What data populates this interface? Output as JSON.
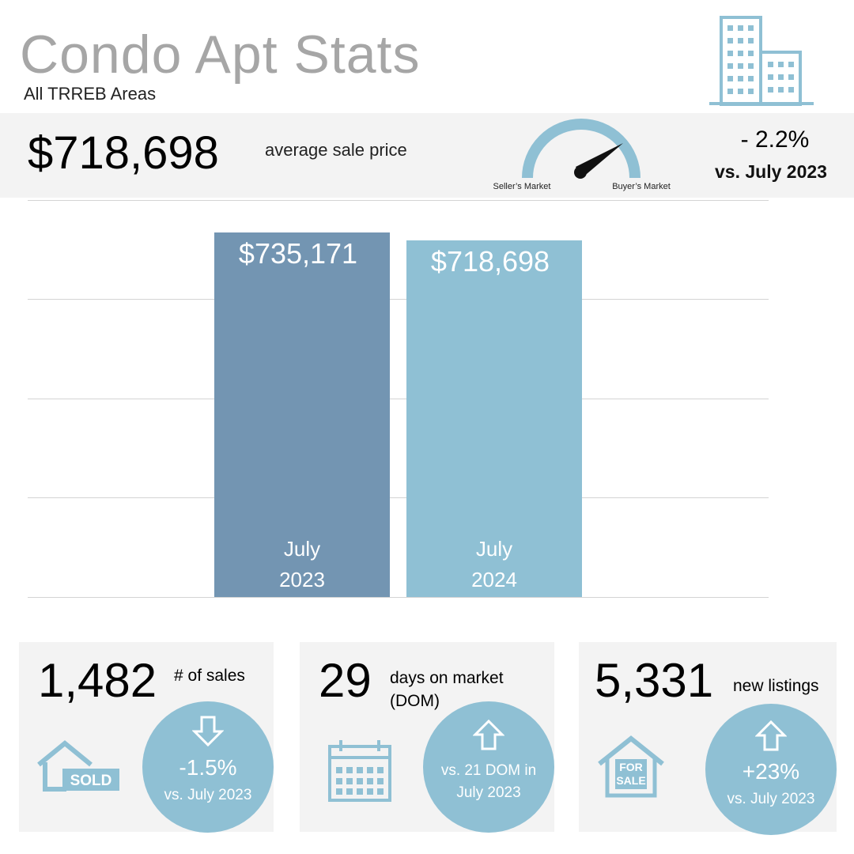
{
  "header": {
    "title": "Condo Apt Stats",
    "subtitle": "All TRREB Areas"
  },
  "summary": {
    "value": "$718,698",
    "label": "average sale price",
    "gauge_left": "Seller’s Market",
    "gauge_right": "Buyer’s Market",
    "change": "- 2.2%",
    "comparison": "vs. July 2023"
  },
  "chart_data": {
    "type": "bar",
    "categories": [
      "July 2023",
      "July 2024"
    ],
    "values": [
      735171,
      718698
    ],
    "value_labels": [
      "$735,171",
      "$718,698"
    ],
    "colors": [
      "#7395b2",
      "#8fc0d4"
    ],
    "ylim": [
      0,
      800000
    ],
    "yticks": [
      0,
      200000,
      400000,
      600000,
      800000
    ],
    "grid": true
  },
  "cards": [
    {
      "value": "1,482",
      "label": "# of sales",
      "icon_text": "SOLD",
      "change": "-1.5%",
      "comparison": "vs. July 2023"
    },
    {
      "value": "29",
      "label": "days on market (DOM)",
      "comparison": "vs. 21 DOM in July 2023"
    },
    {
      "value": "5,331",
      "label": "new listings",
      "icon_text": "FOR SALE",
      "change": "+23%",
      "comparison": "vs. July 2023"
    }
  ]
}
